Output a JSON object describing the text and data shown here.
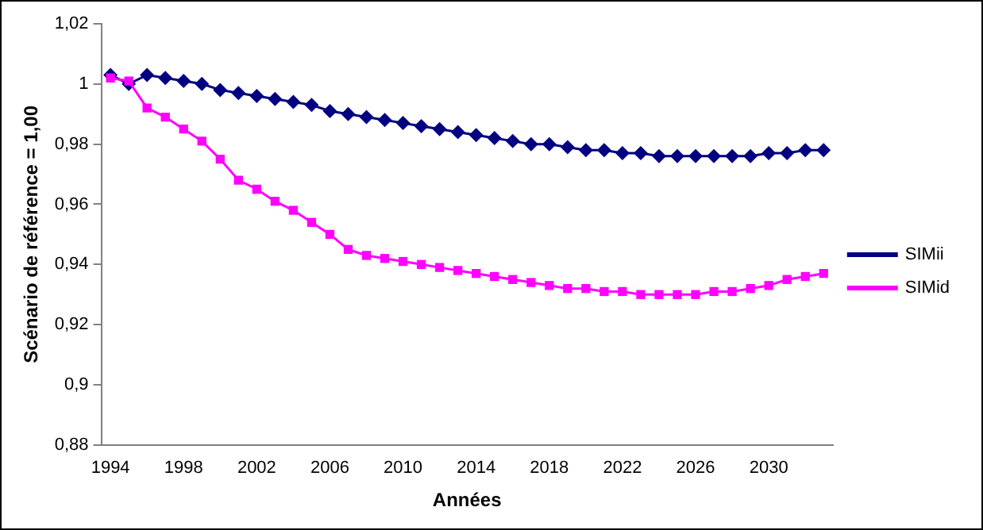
{
  "chart_data": {
    "type": "line",
    "xlabel": "Années",
    "ylabel": "Scénario de référence = 1,00",
    "categories": [
      "1994",
      null,
      null,
      null,
      "1998",
      null,
      null,
      null,
      "2002",
      null,
      null,
      null,
      "2006",
      null,
      null,
      null,
      "2010",
      null,
      null,
      null,
      "2014",
      null,
      null,
      null,
      "2018",
      null,
      null,
      null,
      "2022",
      null,
      null,
      null,
      "2026",
      null,
      null,
      null,
      "2030",
      null,
      null,
      null
    ],
    "series": [
      {
        "name": "SIMii",
        "color": "#000080",
        "marker": "diamond",
        "values": [
          1.003,
          1.0,
          1.003,
          1.002,
          1.001,
          1.0,
          0.998,
          0.997,
          0.996,
          0.995,
          0.994,
          0.993,
          0.991,
          0.99,
          0.989,
          0.988,
          0.987,
          0.986,
          0.985,
          0.984,
          0.983,
          0.982,
          0.981,
          0.98,
          0.98,
          0.979,
          0.978,
          0.978,
          0.977,
          0.977,
          0.976,
          0.976,
          0.976,
          0.976,
          0.976,
          0.976,
          0.977,
          0.977,
          0.978,
          0.978
        ]
      },
      {
        "name": "SIMid",
        "color": "#ff00ff",
        "marker": "square",
        "values": [
          1.002,
          1.001,
          0.992,
          0.989,
          0.985,
          0.981,
          0.975,
          0.968,
          0.965,
          0.961,
          0.958,
          0.954,
          0.95,
          0.945,
          0.943,
          0.942,
          0.941,
          0.94,
          0.939,
          0.938,
          0.937,
          0.936,
          0.935,
          0.934,
          0.933,
          0.932,
          0.932,
          0.931,
          0.931,
          0.93,
          0.93,
          0.93,
          0.93,
          0.931,
          0.931,
          0.932,
          0.933,
          0.935,
          0.936,
          0.937
        ]
      }
    ],
    "ylim": [
      0.88,
      1.02
    ],
    "yticks": [
      {
        "value": 0.88,
        "label": "0,88"
      },
      {
        "value": 0.9,
        "label": "0,9"
      },
      {
        "value": 0.92,
        "label": "0,92"
      },
      {
        "value": 0.94,
        "label": "0,94"
      },
      {
        "value": 0.96,
        "label": "0,96"
      },
      {
        "value": 0.98,
        "label": "0,98"
      },
      {
        "value": 1,
        "label": "1"
      },
      {
        "value": 1.02,
        "label": "1,02"
      }
    ],
    "grid": false,
    "legend": "right"
  }
}
